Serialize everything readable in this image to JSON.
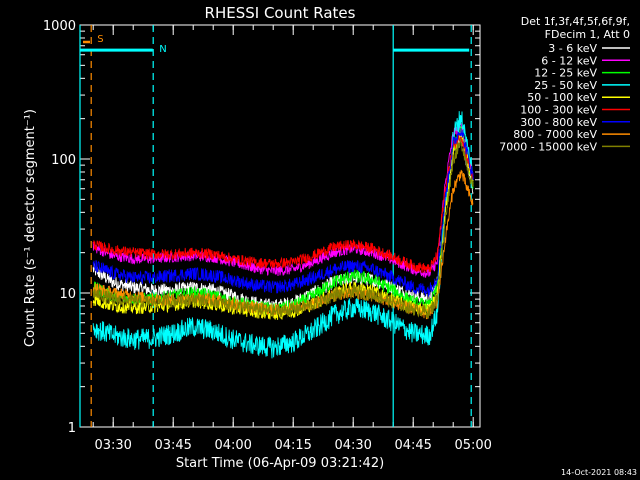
{
  "chart_data": {
    "type": "line",
    "title": "RHESSI Count Rates",
    "xlabel": "Start Time (06-Apr-09 03:21:42)",
    "ylabel": "Count Rate (s⁻¹ detector segment⁻¹)",
    "y_scale": "log",
    "ylim": [
      1,
      1000
    ],
    "xlim": [
      "03:21:42",
      "05:01:42"
    ],
    "grid": false,
    "legend_placement": "right",
    "legend_header": [
      "Det 1f,3f,4f,5f,6f,9f,",
      "FDecim 1, Att 0"
    ],
    "timestamp": "14-Oct-2021 08:43",
    "x_ticks": [
      "03:30",
      "03:45",
      "04:00",
      "04:15",
      "04:30",
      "04:45",
      "05:00"
    ],
    "y_ticks": [
      "1",
      "10",
      "100",
      "1000"
    ],
    "x": [
      "03:25",
      "03:30",
      "03:35",
      "03:40",
      "03:45",
      "03:50",
      "03:55",
      "04:00",
      "04:05",
      "04:10",
      "04:15",
      "04:20",
      "04:25",
      "04:30",
      "04:35",
      "04:40",
      "04:45",
      "04:49",
      "04:51",
      "04:53",
      "04:55",
      "04:57",
      "05:00"
    ],
    "series": [
      {
        "name": "3 - 6 keV",
        "color": "#ffffff",
        "values": [
          15,
          12,
          11,
          10.5,
          10.5,
          11,
          10.5,
          9.5,
          8.5,
          8,
          8.5,
          10,
          12,
          13,
          12.5,
          11,
          9.5,
          9,
          12,
          45,
          110,
          140,
          60
        ]
      },
      {
        "name": "6 - 12 keV",
        "color": "#ff00ff",
        "values": [
          22,
          19,
          18,
          18,
          18.5,
          19,
          18.5,
          17,
          15.5,
          14.5,
          15,
          17,
          20,
          21.5,
          20,
          17.5,
          15,
          14,
          17,
          65,
          155,
          175,
          75
        ]
      },
      {
        "name": "12 - 25 keV",
        "color": "#00ff00",
        "values": [
          11,
          9.5,
          9,
          9,
          9.5,
          10,
          9.5,
          8.5,
          8,
          7.5,
          8,
          9.5,
          12,
          13.5,
          12.5,
          10.5,
          8.5,
          8,
          11,
          45,
          120,
          165,
          65
        ]
      },
      {
        "name": "25 - 50 keV",
        "color": "#00ffff",
        "values": [
          5.5,
          4.8,
          4.5,
          4.6,
          5,
          5.6,
          5.2,
          4.5,
          4.1,
          3.9,
          4.3,
          5.2,
          6.8,
          7.8,
          7.2,
          6,
          5,
          4.8,
          7,
          40,
          150,
          210,
          75
        ]
      },
      {
        "name": "50 - 100 keV",
        "color": "#ffff00",
        "values": [
          9,
          8,
          7.8,
          7.9,
          8.2,
          8.7,
          8.3,
          7.7,
          7.3,
          7,
          7.3,
          8.3,
          10,
          11,
          10.3,
          8.8,
          7.8,
          7.5,
          9.5,
          40,
          110,
          160,
          65
        ]
      },
      {
        "name": "100 - 300 keV",
        "color": "#ff0000",
        "values": [
          23,
          21,
          20,
          19.5,
          19.5,
          20,
          19.5,
          18,
          17,
          16.5,
          17,
          19,
          22,
          23,
          21.5,
          18.5,
          16,
          15,
          19,
          60,
          125,
          150,
          70
        ]
      },
      {
        "name": "300 - 800 keV",
        "color": "#0000ff",
        "values": [
          16,
          14,
          13,
          13,
          13.5,
          14,
          13.5,
          12.5,
          11.5,
          11,
          11.5,
          13,
          15,
          16,
          15,
          13,
          11,
          10.5,
          13,
          50,
          130,
          170,
          72
        ]
      },
      {
        "name": "800 - 7000 keV",
        "color": "#ff8c00",
        "values": [
          11,
          10,
          9.5,
          9,
          9,
          9.2,
          8.9,
          8.3,
          7.8,
          7.5,
          7.7,
          8.3,
          9.5,
          10,
          9.5,
          8.5,
          7.5,
          7,
          8.5,
          25,
          60,
          80,
          45
        ]
      },
      {
        "name": "7000 - 15000 keV",
        "color": "#808000",
        "values": [
          10,
          9,
          8.7,
          8.6,
          8.7,
          9,
          8.7,
          8.1,
          7.6,
          7.3,
          7.5,
          8.2,
          9.6,
          10.2,
          9.7,
          8.5,
          7.6,
          7.2,
          9,
          35,
          100,
          135,
          60
        ]
      }
    ],
    "attenuator_bars": [
      {
        "start": "03:21:42",
        "end": "03:39:53",
        "value": 650,
        "color": "#00ffff"
      },
      {
        "start": "04:40:00",
        "end": "04:59:00",
        "value": 650,
        "color": "#00ffff"
      }
    ],
    "markers": [
      {
        "time": "03:24:30",
        "label": "S",
        "color": "#ff8c00",
        "style": "dashed"
      },
      {
        "time": "03:40:00",
        "label": "N",
        "color": "#00ffff",
        "style": "dashed"
      },
      {
        "time": "04:40:00",
        "label": "",
        "color": "#00ffff",
        "style": "solid"
      },
      {
        "time": "04:59:30",
        "label": "",
        "color": "#00ffff",
        "style": "dashed"
      },
      {
        "time": "03:21:42",
        "label": "",
        "color": "#00ffff",
        "style": "solid"
      }
    ]
  }
}
